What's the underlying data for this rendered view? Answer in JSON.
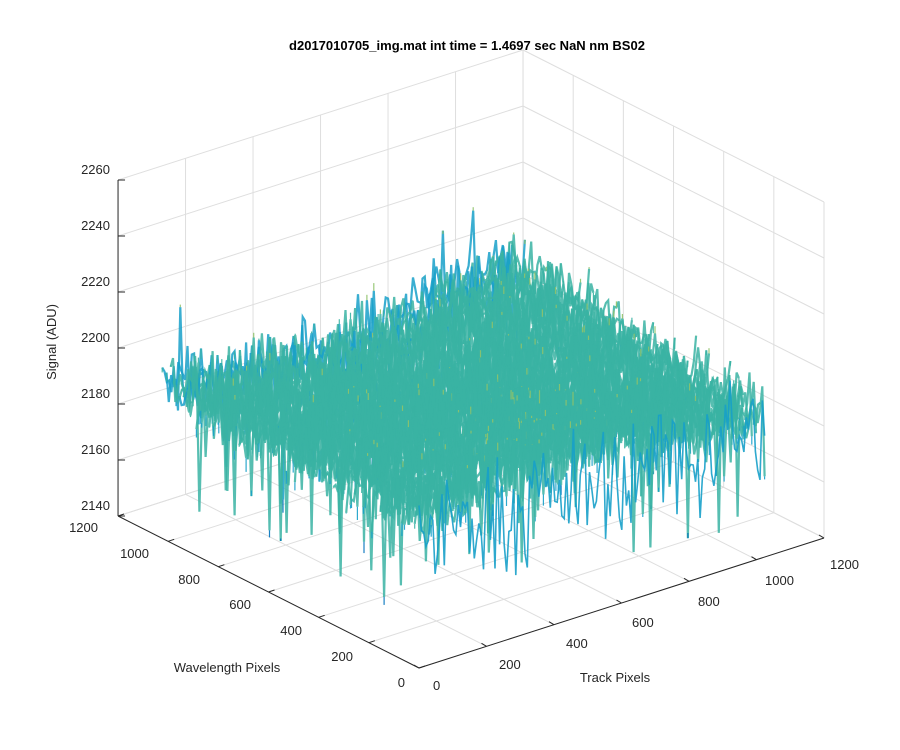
{
  "chart_data": {
    "type": "surface",
    "title": "d2017010705_img.mat int time = 1.4697 sec  NaN nm BS02",
    "x_label": "Track Pixels",
    "y_label": "Wavelength Pixels",
    "z_label": "Signal (ADU)",
    "x_ticks": [
      "0",
      "200",
      "400",
      "600",
      "800",
      "1000",
      "1200"
    ],
    "y_ticks": [
      "0",
      "200",
      "400",
      "600",
      "800",
      "1000",
      "1200"
    ],
    "z_ticks": [
      "2140",
      "2160",
      "2180",
      "2200",
      "2220",
      "2240",
      "2260"
    ],
    "x_range": [
      0,
      1200
    ],
    "y_range": [
      0,
      1200
    ],
    "z_range": [
      2140,
      2260
    ],
    "grid": true,
    "colormap": "parula",
    "colors": [
      "#0072bd",
      "#17a0c9",
      "#3ab3a3",
      "#8fc26a",
      "#e6bd2e"
    ],
    "surface_extent": {
      "x": [
        0,
        1024
      ],
      "y": [
        0,
        1024
      ]
    },
    "signal_mean": 2195,
    "signal_range": [
      2145,
      2245
    ]
  }
}
